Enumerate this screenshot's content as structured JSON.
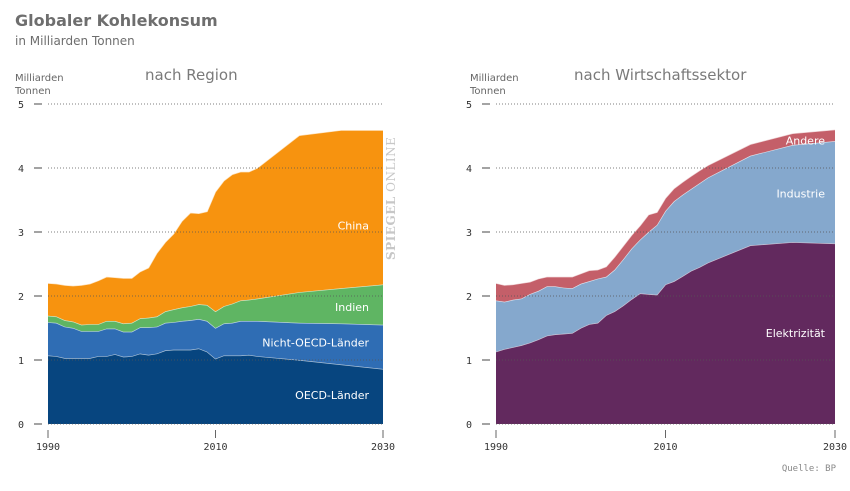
{
  "header": {
    "title": "Globaler Kohlekonsum",
    "subtitle": "in Milliarden Tonnen"
  },
  "watermark": {
    "bold": "SPIEGEL",
    "light": "ONLINE"
  },
  "source": "Quelle: BP",
  "chart_data": [
    {
      "type": "area",
      "stacked": true,
      "title": "nach Region",
      "ylabel": "Milliarden Tonnen",
      "ylabel_lines": [
        "Milliarden",
        "Tonnen"
      ],
      "xlabel": "",
      "xlim": [
        1990,
        2030
      ],
      "ylim": [
        0,
        5
      ],
      "yticks": [
        0,
        1,
        2,
        3,
        4,
        5
      ],
      "xticks": [
        1990,
        2010,
        2030
      ],
      "grid": true,
      "x": [
        1990,
        1991,
        1992,
        1993,
        1994,
        1995,
        1996,
        1997,
        1998,
        1999,
        2000,
        2001,
        2002,
        2003,
        2004,
        2005,
        2006,
        2007,
        2008,
        2009,
        2010,
        2011,
        2012,
        2013,
        2014,
        2015,
        2020,
        2025,
        2030
      ],
      "series": [
        {
          "name": "OECD-Länder",
          "color": "#07457f",
          "values": [
            1.07,
            1.06,
            1.03,
            1.03,
            1.03,
            1.03,
            1.06,
            1.06,
            1.09,
            1.05,
            1.06,
            1.1,
            1.08,
            1.1,
            1.15,
            1.16,
            1.16,
            1.16,
            1.18,
            1.13,
            1.02,
            1.07,
            1.07,
            1.07,
            1.08,
            1.06,
            1.0,
            0.93,
            0.86
          ]
        },
        {
          "name": "Nicht-OECD-Länder",
          "color": "#2f6db4",
          "values": [
            0.52,
            0.52,
            0.49,
            0.47,
            0.42,
            0.42,
            0.39,
            0.43,
            0.4,
            0.39,
            0.38,
            0.41,
            0.43,
            0.42,
            0.43,
            0.43,
            0.45,
            0.46,
            0.46,
            0.48,
            0.48,
            0.5,
            0.51,
            0.54,
            0.53,
            0.55,
            0.58,
            0.64,
            0.69
          ]
        },
        {
          "name": "Indien",
          "color": "#5fb563",
          "values": [
            0.1,
            0.1,
            0.1,
            0.1,
            0.1,
            0.11,
            0.11,
            0.12,
            0.12,
            0.13,
            0.14,
            0.14,
            0.15,
            0.16,
            0.18,
            0.2,
            0.21,
            0.22,
            0.23,
            0.25,
            0.26,
            0.27,
            0.3,
            0.32,
            0.33,
            0.35,
            0.48,
            0.55,
            0.63
          ]
        },
        {
          "name": "China",
          "color": "#f7930f",
          "values": [
            0.51,
            0.51,
            0.55,
            0.56,
            0.62,
            0.63,
            0.68,
            0.69,
            0.68,
            0.71,
            0.7,
            0.73,
            0.78,
            0.99,
            1.08,
            1.18,
            1.35,
            1.46,
            1.42,
            1.46,
            1.87,
            1.96,
            2.02,
            2.01,
            2.0,
            2.04,
            2.45,
            2.47,
            2.41
          ]
        }
      ],
      "totals_note": "",
      "label_positions": "inside-right"
    },
    {
      "type": "area",
      "stacked": true,
      "title": "nach Wirtschaftssektor",
      "ylabel": "Milliarden Tonnen",
      "ylabel_lines": [
        "Milliarden",
        "Tonnen"
      ],
      "xlabel": "",
      "xlim": [
        1990,
        2030
      ],
      "ylim": [
        0,
        5
      ],
      "yticks": [
        0,
        1,
        2,
        3,
        4,
        5
      ],
      "xticks": [
        1990,
        2010,
        2030
      ],
      "grid": true,
      "x": [
        1990,
        1991,
        1992,
        1993,
        1994,
        1995,
        1996,
        1997,
        1998,
        1999,
        2000,
        2001,
        2002,
        2003,
        2004,
        2005,
        2006,
        2007,
        2008,
        2009,
        2010,
        2011,
        2012,
        2013,
        2014,
        2015,
        2020,
        2025,
        2030
      ],
      "series": [
        {
          "name": "Elektrizität",
          "color": "#62295e",
          "values": [
            1.13,
            1.17,
            1.2,
            1.23,
            1.27,
            1.32,
            1.38,
            1.4,
            1.41,
            1.42,
            1.5,
            1.56,
            1.58,
            1.7,
            1.76,
            1.85,
            1.95,
            2.04,
            2.03,
            2.02,
            2.18,
            2.23,
            2.31,
            2.39,
            2.45,
            2.52,
            2.79,
            2.84,
            2.82
          ]
        },
        {
          "name": "Industrie",
          "color": "#85a8cd",
          "values": [
            0.8,
            0.74,
            0.74,
            0.73,
            0.76,
            0.76,
            0.77,
            0.75,
            0.72,
            0.7,
            0.69,
            0.67,
            0.69,
            0.6,
            0.65,
            0.72,
            0.79,
            0.84,
            0.97,
            1.09,
            1.15,
            1.25,
            1.27,
            1.28,
            1.31,
            1.33,
            1.4,
            1.52,
            1.6
          ]
        },
        {
          "name": "Andere",
          "color": "#c45f69",
          "values": [
            0.27,
            0.26,
            0.24,
            0.24,
            0.19,
            0.19,
            0.15,
            0.15,
            0.17,
            0.18,
            0.16,
            0.17,
            0.14,
            0.16,
            0.2,
            0.21,
            0.21,
            0.22,
            0.27,
            0.2,
            0.2,
            0.2,
            0.2,
            0.2,
            0.2,
            0.19,
            0.18,
            0.18,
            0.18
          ]
        }
      ],
      "label_positions": "inside-right"
    }
  ]
}
